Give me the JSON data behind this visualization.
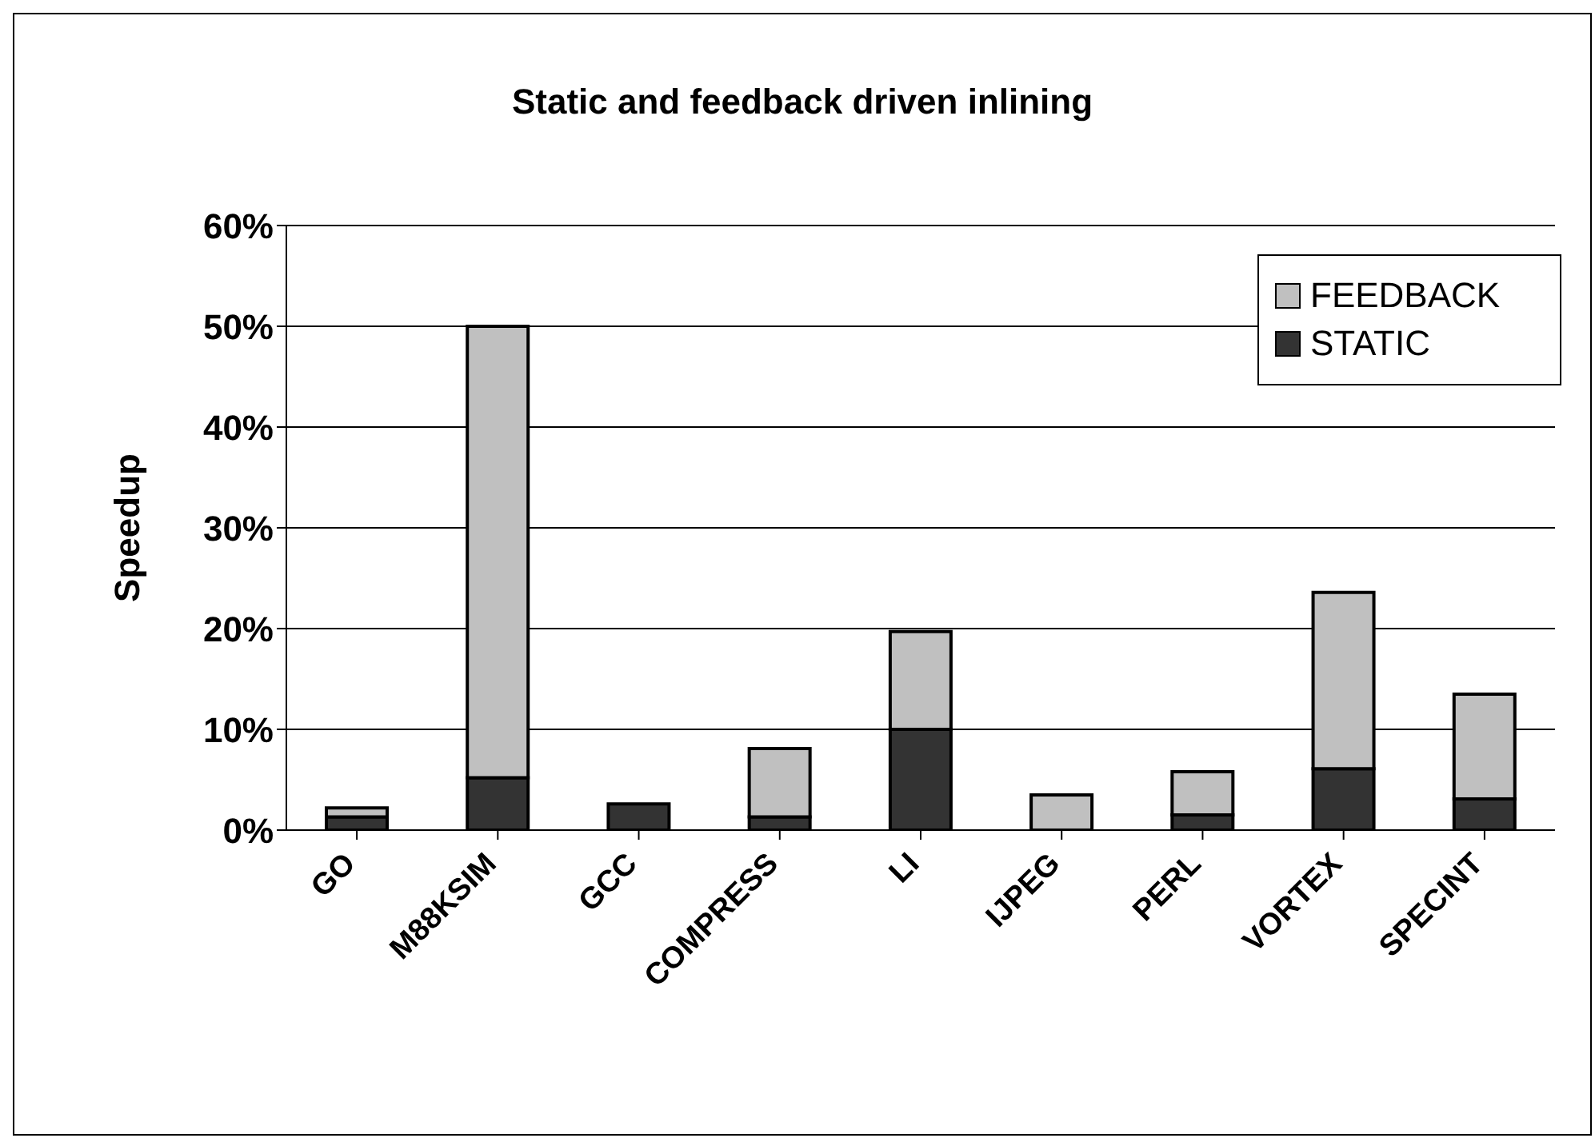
{
  "chart_data": {
    "type": "bar",
    "title": "Static and feedback driven inlining",
    "ylabel": "Speedup",
    "categories": [
      "GO",
      "M88KSIM",
      "GCC",
      "COMPRESS",
      "LI",
      "IJPEG",
      "PERL",
      "VORTEX",
      "SPECINT"
    ],
    "stacked": true,
    "series": [
      {
        "name": "STATIC",
        "color": "#333333",
        "values": [
          1.3,
          5.2,
          2.6,
          1.3,
          10,
          0,
          1.5,
          6.1,
          3.1
        ]
      },
      {
        "name": "FEEDBACK",
        "color": "#c0c0c0",
        "values": [
          0.9,
          44.8,
          0,
          6.8,
          9.7,
          3.5,
          4.3,
          17.5,
          10.4
        ]
      }
    ],
    "ylim": [
      0,
      60
    ],
    "yticks": [
      {
        "value": 0,
        "label": "0%"
      },
      {
        "value": 10,
        "label": "10%"
      },
      {
        "value": 20,
        "label": "20%"
      },
      {
        "value": 30,
        "label": "30%"
      },
      {
        "value": 40,
        "label": "40%"
      },
      {
        "value": 50,
        "label": "50%"
      },
      {
        "value": 60,
        "label": "60%"
      }
    ],
    "grid": "y",
    "legend": "top right"
  }
}
